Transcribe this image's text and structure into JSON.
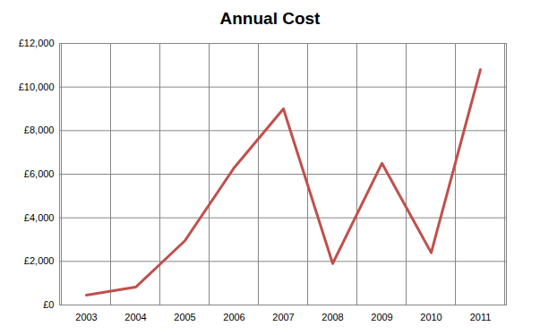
{
  "chart_data": {
    "type": "line",
    "title": "Annual Cost",
    "categories": [
      "2003",
      "2004",
      "2005",
      "2006",
      "2007",
      "2008",
      "2009",
      "2010",
      "2011"
    ],
    "values": [
      450,
      820,
      2950,
      6300,
      9000,
      1900,
      6500,
      2400,
      10800
    ],
    "color": "#c0504d",
    "ylim": [
      0,
      12000
    ],
    "yticks": [
      {
        "value": 0,
        "label": "£0"
      },
      {
        "value": 2000,
        "label": "£2,000"
      },
      {
        "value": 4000,
        "label": "£4,000"
      },
      {
        "value": 6000,
        "label": "£6,000"
      },
      {
        "value": 8000,
        "label": "£8,000"
      },
      {
        "value": 10000,
        "label": "£10,000"
      },
      {
        "value": 12000,
        "label": "£12,000"
      }
    ],
    "grid": true
  }
}
